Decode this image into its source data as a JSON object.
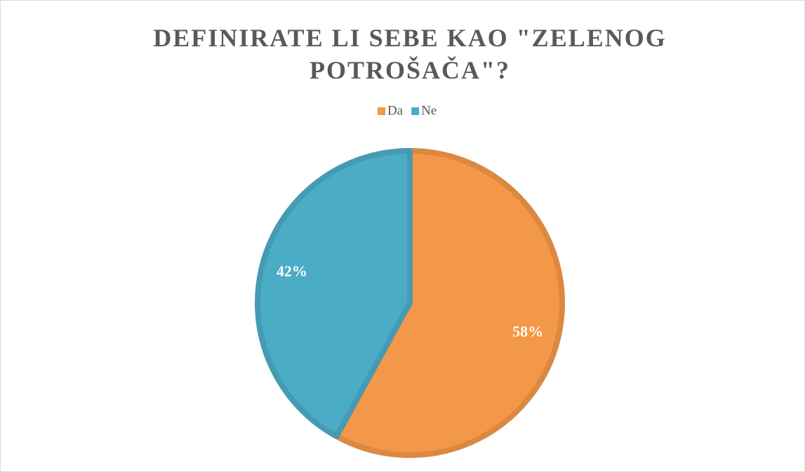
{
  "chart_data": {
    "type": "pie",
    "title": "DEFINIRATE LI SEBE KAO \"ZELENOG POTROŠAČA\"?",
    "categories": [
      "Da",
      "Ne"
    ],
    "values": [
      58,
      42
    ],
    "value_labels": [
      "58%",
      "42%"
    ],
    "colors": [
      "#f39748",
      "#4bacc6"
    ],
    "legend": "top"
  }
}
